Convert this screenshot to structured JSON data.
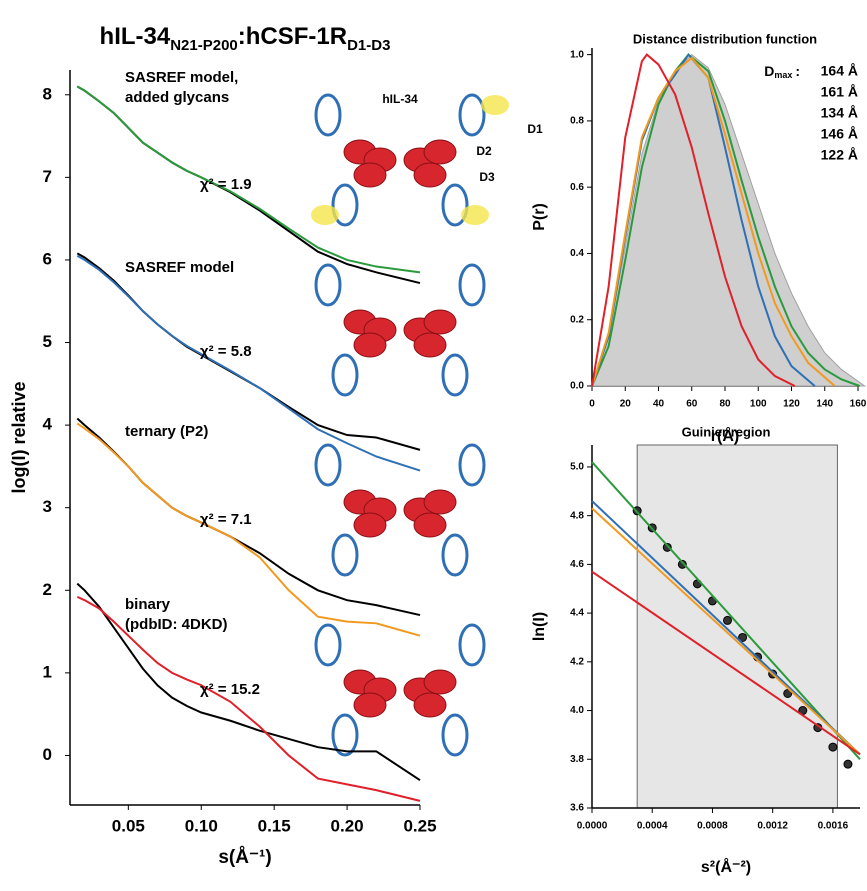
{
  "title_parts": [
    "hIL-34",
    "N21-P200",
    ":hCSF-1R",
    "D1-D3"
  ],
  "chart_data": [
    {
      "type": "line",
      "xlabel": "s(Å⁻¹)",
      "ylabel": "log(I)  relative",
      "xlim": [
        0.01,
        0.25
      ],
      "ylim": [
        -0.6,
        8.3
      ],
      "xticks": [
        0.05,
        {
          "value": 0.1,
          "label": "0.10"
        },
        0.15,
        {
          "value": 0.2,
          "label": "0.20"
        },
        0.25
      ],
      "yticks": [
        0,
        1,
        2,
        3,
        4,
        5,
        6,
        7,
        8
      ],
      "annotations": [
        "hIL-34",
        "D1",
        "D2",
        "D3"
      ],
      "x": [
        0.015,
        0.02,
        0.03,
        0.04,
        0.05,
        0.06,
        0.07,
        0.08,
        0.09,
        0.1,
        0.12,
        0.14,
        0.16,
        0.18,
        0.2,
        0.22,
        0.25
      ],
      "series": [
        {
          "color": "#000000",
          "values": [
            8.1,
            8.05,
            7.92,
            7.78,
            7.6,
            7.42,
            7.3,
            7.18,
            7.08,
            7.0,
            6.82,
            6.6,
            6.35,
            6.1,
            5.95,
            5.85,
            5.72
          ]
        },
        {
          "color": "#2a9a3c",
          "label_lines": [
            "SASREF model,",
            "added glycans"
          ],
          "chi2": "χ² = 1.9",
          "values": [
            8.1,
            8.05,
            7.92,
            7.78,
            7.6,
            7.42,
            7.3,
            7.18,
            7.08,
            7.0,
            6.83,
            6.62,
            6.38,
            6.15,
            6.0,
            5.92,
            5.85
          ]
        },
        {
          "color": "#000000",
          "values": [
            6.08,
            6.03,
            5.9,
            5.75,
            5.57,
            5.38,
            5.22,
            5.08,
            4.95,
            4.85,
            4.65,
            4.45,
            4.22,
            4.0,
            3.88,
            3.85,
            3.7
          ]
        },
        {
          "color": "#2f6fb6",
          "label_lines": [
            "SASREF model"
          ],
          "chi2": "χ² = 5.8",
          "values": [
            6.05,
            6.0,
            5.88,
            5.73,
            5.56,
            5.38,
            5.22,
            5.08,
            4.96,
            4.86,
            4.66,
            4.45,
            4.2,
            3.95,
            3.78,
            3.62,
            3.45
          ]
        },
        {
          "color": "#000000",
          "values": [
            4.08,
            4.0,
            3.85,
            3.68,
            3.5,
            3.3,
            3.15,
            3.0,
            2.9,
            2.82,
            2.65,
            2.45,
            2.2,
            2.0,
            1.88,
            1.82,
            1.7
          ]
        },
        {
          "color": "#f29a1f",
          "label_lines": [
            "ternary (P2)"
          ],
          "chi2": "χ² = 7.1",
          "values": [
            4.02,
            3.96,
            3.83,
            3.67,
            3.5,
            3.3,
            3.15,
            3.0,
            2.9,
            2.82,
            2.65,
            2.4,
            2.0,
            1.68,
            1.62,
            1.6,
            1.45
          ]
        },
        {
          "color": "#000000",
          "values": [
            2.08,
            2.0,
            1.8,
            1.55,
            1.3,
            1.05,
            0.85,
            0.7,
            0.6,
            0.52,
            0.42,
            0.3,
            0.2,
            0.1,
            0.05,
            0.05,
            -0.3
          ]
        },
        {
          "color": "#e0202a",
          "label_lines": [
            "binary",
            "(pdbID: 4DKD)"
          ],
          "chi2": "χ² = 15.2",
          "values": [
            1.92,
            1.88,
            1.78,
            1.62,
            1.45,
            1.28,
            1.12,
            1.0,
            0.92,
            0.85,
            0.65,
            0.35,
            0.0,
            -0.28,
            -0.35,
            -0.42,
            -0.55
          ]
        }
      ]
    },
    {
      "type": "line",
      "title": "Distance distribution function",
      "xlabel": "r(Å)",
      "ylabel": "P(r)",
      "xlim": [
        0,
        160
      ],
      "ylim": [
        0,
        1.02
      ],
      "xticks": [
        0,
        20,
        40,
        60,
        80,
        100,
        120,
        140,
        160
      ],
      "yticks": [
        {
          "value": 0,
          "label": "0.0"
        },
        0.2,
        0.4,
        0.6,
        0.8,
        {
          "value": 1,
          "label": "1.0"
        }
      ],
      "legend_title": [
        "D",
        "max",
        ":"
      ],
      "series": [
        {
          "name": "164 Å",
          "color": "#a0a0a0",
          "fill": true,
          "x": [
            0,
            10,
            20,
            30,
            40,
            50,
            60,
            70,
            80,
            90,
            100,
            110,
            120,
            130,
            140,
            150,
            164
          ],
          "values": [
            0,
            0.15,
            0.42,
            0.7,
            0.86,
            0.95,
            1.0,
            0.96,
            0.85,
            0.7,
            0.55,
            0.4,
            0.28,
            0.18,
            0.1,
            0.05,
            0
          ]
        },
        {
          "name": "161 Å",
          "color": "#2a9a3c",
          "x": [
            0,
            10,
            20,
            30,
            40,
            50,
            58,
            70,
            80,
            90,
            100,
            110,
            120,
            130,
            140,
            150,
            161
          ],
          "values": [
            0,
            0.12,
            0.38,
            0.66,
            0.85,
            0.95,
            1.0,
            0.95,
            0.8,
            0.62,
            0.45,
            0.3,
            0.18,
            0.1,
            0.05,
            0.02,
            0
          ]
        },
        {
          "name": "134 Å",
          "color": "#2f6fb6",
          "x": [
            0,
            10,
            20,
            30,
            40,
            50,
            58,
            70,
            80,
            90,
            100,
            110,
            120,
            134
          ],
          "values": [
            0,
            0.15,
            0.45,
            0.74,
            0.87,
            0.94,
            1.0,
            0.93,
            0.72,
            0.5,
            0.3,
            0.15,
            0.06,
            0
          ]
        },
        {
          "name": "146 Å",
          "color": "#f29a1f",
          "x": [
            0,
            10,
            20,
            30,
            40,
            50,
            60,
            70,
            80,
            90,
            100,
            110,
            120,
            130,
            146
          ],
          "values": [
            0,
            0.16,
            0.46,
            0.75,
            0.87,
            0.95,
            0.99,
            0.93,
            0.76,
            0.58,
            0.4,
            0.25,
            0.15,
            0.07,
            0
          ]
        },
        {
          "name": "122 Å",
          "color": "#e0202a",
          "x": [
            0,
            10,
            20,
            30,
            33,
            40,
            50,
            60,
            70,
            80,
            90,
            100,
            110,
            122
          ],
          "values": [
            0,
            0.3,
            0.75,
            0.98,
            1.0,
            0.97,
            0.88,
            0.72,
            0.52,
            0.33,
            0.18,
            0.08,
            0.03,
            0
          ]
        }
      ]
    },
    {
      "type": "line",
      "title": "Guinier region",
      "xlabel": "s²(Å⁻²)",
      "ylabel": "ln(I)",
      "xlim": [
        0,
        0.00178
      ],
      "ylim": [
        3.6,
        5.09
      ],
      "shaded_region": [
        0.0003,
        0.00163
      ],
      "xticks": [
        {
          "value": 0,
          "label": "0.0000"
        },
        {
          "value": 0.0004,
          "label": "0.0004"
        },
        {
          "value": 0.0008,
          "label": "0.0008"
        },
        {
          "value": 0.0012,
          "label": "0.0012"
        },
        {
          "value": 0.0016,
          "label": "0.0016"
        }
      ],
      "yticks": [
        3.6,
        3.8,
        {
          "value": 4,
          "label": "4.0"
        },
        4.2,
        4.4,
        4.6,
        4.8,
        {
          "value": 5,
          "label": "5.0"
        }
      ],
      "series": [
        {
          "color": "#000000",
          "type": "scatter",
          "x": [
            0.0003,
            0.0004,
            0.0005,
            0.0006,
            0.0007,
            0.0008,
            0.0009,
            0.001,
            0.0011,
            0.0012,
            0.0013,
            0.0014,
            0.0015,
            0.0016,
            0.0017
          ],
          "values": [
            4.82,
            4.75,
            4.67,
            4.6,
            4.52,
            4.45,
            4.37,
            4.3,
            4.22,
            4.15,
            4.07,
            4.0,
            3.93,
            3.85,
            3.78
          ]
        },
        {
          "color": "#2a9a3c",
          "x": [
            0,
            0.00178
          ],
          "values": [
            5.02,
            3.8
          ]
        },
        {
          "color": "#2f6fb6",
          "x": [
            0,
            0.00178
          ],
          "values": [
            4.86,
            3.82
          ]
        },
        {
          "color": "#f29a1f",
          "x": [
            0,
            0.00178
          ],
          "values": [
            4.83,
            3.82
          ]
        },
        {
          "color": "#e0202a",
          "x": [
            0,
            0.00178
          ],
          "values": [
            4.57,
            3.82
          ]
        }
      ]
    }
  ]
}
